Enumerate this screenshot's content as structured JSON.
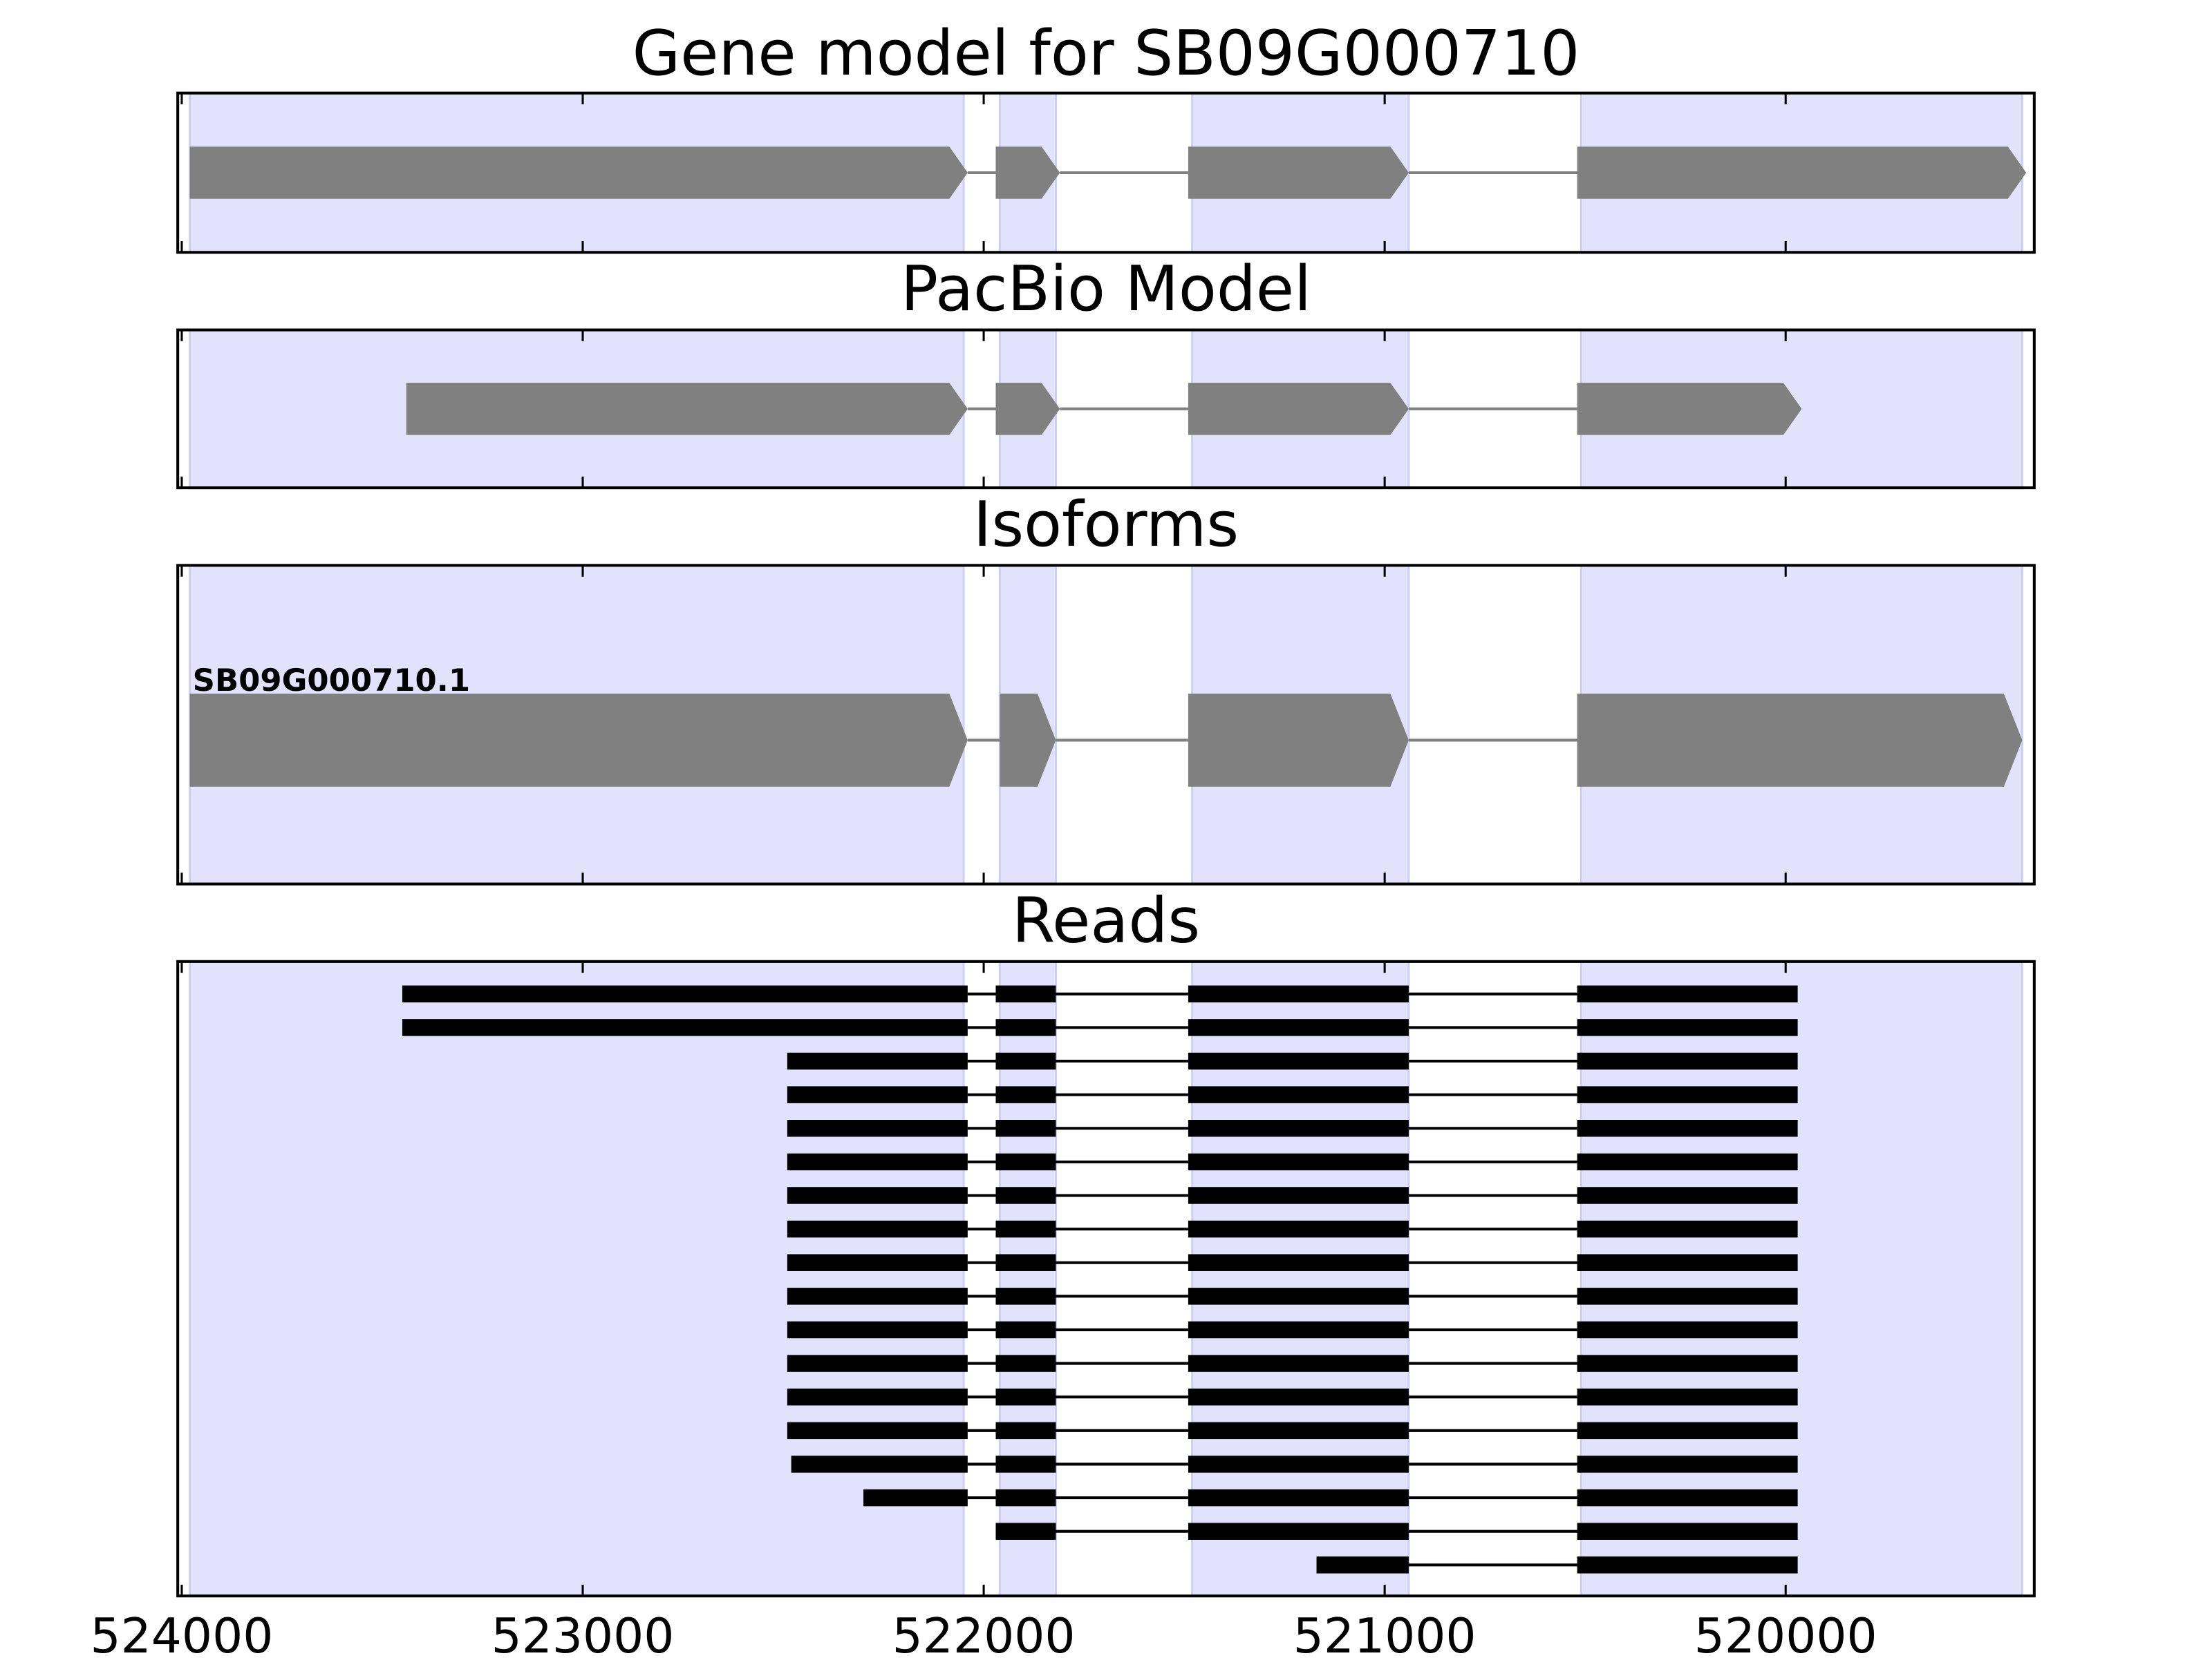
{
  "chart_data": [
    {
      "type": "gene-track",
      "title": "Gene model for SB09G000710",
      "xlim": [
        524010,
        519380
      ],
      "xticks": [
        524000,
        523000,
        522000,
        521000,
        520000
      ],
      "tick_labels": false,
      "region_color": "#e2e2fc",
      "exon_color": "#808080",
      "regions": [
        [
          523980,
          522050
        ],
        [
          521960,
          521820
        ],
        [
          521480,
          520940
        ],
        [
          520510,
          519410
        ]
      ],
      "transcripts": [
        {
          "exons": [
            [
              523980,
              522040
            ],
            [
              521970,
              521810
            ],
            [
              521490,
              520940
            ],
            [
              520520,
              519400
            ]
          ]
        }
      ]
    },
    {
      "type": "gene-track",
      "title": "PacBio Model",
      "xlim": [
        524010,
        519380
      ],
      "xticks": [
        524000,
        523000,
        522000,
        521000,
        520000
      ],
      "tick_labels": false,
      "region_color": "#e2e2fc",
      "exon_color": "#808080",
      "regions": [
        [
          523980,
          522050
        ],
        [
          521960,
          521820
        ],
        [
          521480,
          520940
        ],
        [
          520510,
          519410
        ]
      ],
      "transcripts": [
        {
          "exons": [
            [
              523440,
              522040
            ],
            [
              521970,
              521810
            ],
            [
              521490,
              520940
            ],
            [
              520520,
              519960
            ]
          ]
        }
      ]
    },
    {
      "type": "gene-track",
      "title": "Isoforms",
      "xlim": [
        524010,
        519380
      ],
      "xticks": [
        524000,
        523000,
        522000,
        521000,
        520000
      ],
      "tick_labels": false,
      "region_color": "#e2e2fc",
      "exon_color": "#808080",
      "regions": [
        [
          523980,
          522050
        ],
        [
          521960,
          521820
        ],
        [
          521480,
          520940
        ],
        [
          520510,
          519410
        ]
      ],
      "transcripts": [
        {
          "name": "SB09G000710.1",
          "exons": [
            [
              523980,
              522040
            ],
            [
              521960,
              521820
            ],
            [
              521490,
              520940
            ],
            [
              520520,
              519410
            ]
          ]
        }
      ]
    },
    {
      "type": "reads",
      "title": "Reads",
      "xlim": [
        524010,
        519380
      ],
      "xticks": [
        524000,
        523000,
        522000,
        521000,
        520000
      ],
      "tick_labels": true,
      "region_color": "#e2e2fc",
      "exon_color": "#000000",
      "regions": [
        [
          523980,
          522050
        ],
        [
          521960,
          521820
        ],
        [
          521480,
          520940
        ],
        [
          520510,
          519410
        ]
      ],
      "transcripts": [
        {
          "exons": [
            [
              523450,
              522040
            ],
            [
              521970,
              521820
            ],
            [
              521490,
              520940
            ],
            [
              520520,
              519970
            ]
          ]
        },
        {
          "exons": [
            [
              523450,
              522040
            ],
            [
              521970,
              521820
            ],
            [
              521490,
              520940
            ],
            [
              520520,
              519970
            ]
          ]
        },
        {
          "exons": [
            [
              522490,
              522040
            ],
            [
              521970,
              521820
            ],
            [
              521490,
              520940
            ],
            [
              520520,
              519970
            ]
          ]
        },
        {
          "exons": [
            [
              522490,
              522040
            ],
            [
              521970,
              521820
            ],
            [
              521490,
              520940
            ],
            [
              520520,
              519970
            ]
          ]
        },
        {
          "exons": [
            [
              522490,
              522040
            ],
            [
              521970,
              521820
            ],
            [
              521490,
              520940
            ],
            [
              520520,
              519970
            ]
          ]
        },
        {
          "exons": [
            [
              522490,
              522040
            ],
            [
              521970,
              521820
            ],
            [
              521490,
              520940
            ],
            [
              520520,
              519970
            ]
          ]
        },
        {
          "exons": [
            [
              522490,
              522040
            ],
            [
              521970,
              521820
            ],
            [
              521490,
              520940
            ],
            [
              520520,
              519970
            ]
          ]
        },
        {
          "exons": [
            [
              522490,
              522040
            ],
            [
              521970,
              521820
            ],
            [
              521490,
              520940
            ],
            [
              520520,
              519970
            ]
          ]
        },
        {
          "exons": [
            [
              522490,
              522040
            ],
            [
              521970,
              521820
            ],
            [
              521490,
              520940
            ],
            [
              520520,
              519970
            ]
          ]
        },
        {
          "exons": [
            [
              522490,
              522040
            ],
            [
              521970,
              521820
            ],
            [
              521490,
              520940
            ],
            [
              520520,
              519970
            ]
          ]
        },
        {
          "exons": [
            [
              522490,
              522040
            ],
            [
              521970,
              521820
            ],
            [
              521490,
              520940
            ],
            [
              520520,
              519970
            ]
          ]
        },
        {
          "exons": [
            [
              522490,
              522040
            ],
            [
              521970,
              521820
            ],
            [
              521490,
              520940
            ],
            [
              520520,
              519970
            ]
          ]
        },
        {
          "exons": [
            [
              522490,
              522040
            ],
            [
              521970,
              521820
            ],
            [
              521490,
              520940
            ],
            [
              520520,
              519970
            ]
          ]
        },
        {
          "exons": [
            [
              522490,
              522040
            ],
            [
              521970,
              521820
            ],
            [
              521490,
              520940
            ],
            [
              520520,
              519970
            ]
          ]
        },
        {
          "exons": [
            [
              522480,
              522040
            ],
            [
              521970,
              521820
            ],
            [
              521490,
              520940
            ],
            [
              520520,
              519970
            ]
          ]
        },
        {
          "exons": [
            [
              522300,
              522040
            ],
            [
              521970,
              521820
            ],
            [
              521490,
              520940
            ],
            [
              520520,
              519970
            ]
          ]
        },
        {
          "exons": [
            [
              521970,
              521820
            ],
            [
              521490,
              520940
            ],
            [
              520520,
              519970
            ]
          ]
        },
        {
          "exons": [
            [
              521170,
              520940
            ],
            [
              520520,
              519970
            ]
          ]
        }
      ]
    }
  ]
}
